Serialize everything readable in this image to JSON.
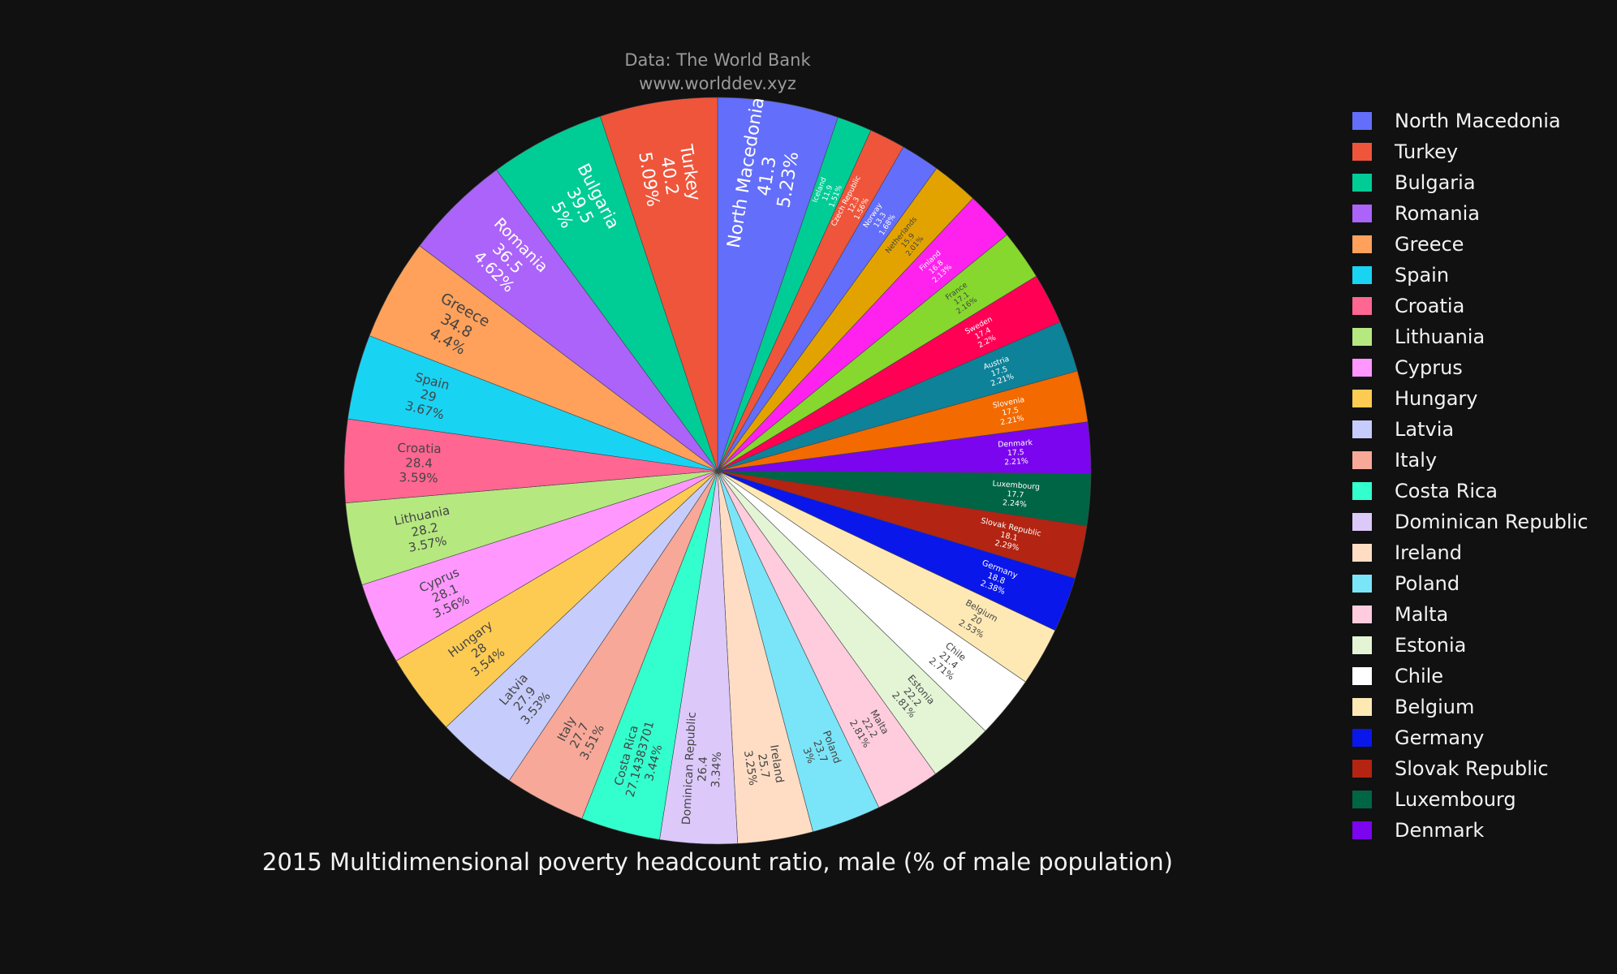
{
  "source_line1": "Data: The World Bank",
  "source_line2": "www.worlddev.xyz",
  "chart_data": {
    "type": "pie",
    "title": "2015 Multidimensional poverty headcount ratio, male (% of male population)",
    "direction": "clockwise",
    "legend_position": "right",
    "slices": [
      {
        "label": "North Macedonia",
        "value": 41.3,
        "percent": "5.23%",
        "color": "#636efa"
      },
      {
        "label": "Iceland",
        "value": 11.9,
        "percent": "1.51%",
        "color": "#00cc96"
      },
      {
        "label": "Czech Republic",
        "value": 12.3,
        "percent": "1.56%",
        "color": "#EF553B"
      },
      {
        "label": "Norway",
        "value": 13.3,
        "percent": "1.68%",
        "color": "#636efa"
      },
      {
        "label": "Netherlands",
        "value": 15.9,
        "percent": "2.01%",
        "color": "#E2A300"
      },
      {
        "label": "Finland",
        "value": 16.8,
        "percent": "2.13%",
        "color": "#FF22EE"
      },
      {
        "label": "France",
        "value": 17.1,
        "percent": "2.16%",
        "color": "#86D72E"
      },
      {
        "label": "Sweden",
        "value": 17.4,
        "percent": "2.2%",
        "color": "#FF0055"
      },
      {
        "label": "Austria",
        "value": 17.5,
        "percent": "2.21%",
        "color": "#0D8299"
      },
      {
        "label": "Slovenia",
        "value": 17.5,
        "percent": "2.21%",
        "color": "#F26A00"
      },
      {
        "label": "Denmark",
        "value": 17.5,
        "percent": "2.21%",
        "color": "#7A05EE"
      },
      {
        "label": "Luxembourg",
        "value": 17.7,
        "percent": "2.24%",
        "color": "#006545"
      },
      {
        "label": "Slovak Republic",
        "value": 18.1,
        "percent": "2.29%",
        "color": "#B32412"
      },
      {
        "label": "Germany",
        "value": 18.8,
        "percent": "2.38%",
        "color": "#0A17EB"
      },
      {
        "label": "Belgium",
        "value": 20,
        "percent": "2.53%",
        "color": "#FEE9B5"
      },
      {
        "label": "Chile",
        "value": 21.4,
        "percent": "2.71%",
        "color": "#FFFFFF"
      },
      {
        "label": "Estonia",
        "value": 22.2,
        "percent": "2.81%",
        "color": "#E4F5D6"
      },
      {
        "label": "Malta",
        "value": 22.2,
        "percent": "2.81%",
        "color": "#FFCCDD"
      },
      {
        "label": "Poland",
        "value": 23.7,
        "percent": "3%",
        "color": "#7AE5F8"
      },
      {
        "label": "Ireland",
        "value": 25.7,
        "percent": "3.25%",
        "color": "#FFDDC4"
      },
      {
        "label": "Dominican Republic",
        "value": 26.4,
        "percent": "3.34%",
        "color": "#DCC9FA"
      },
      {
        "label": "Costa Rica",
        "value": "27.14383701",
        "percent": "3.44%",
        "color": "#33FFCE"
      },
      {
        "label": "Italy",
        "value": 27.7,
        "percent": "3.51%",
        "color": "#F7A898"
      },
      {
        "label": "Latvia",
        "value": 27.9,
        "percent": "3.53%",
        "color": "#C6CCFB"
      },
      {
        "label": "Hungary",
        "value": 28,
        "percent": "3.54%",
        "color": "#FECB52"
      },
      {
        "label": "Cyprus",
        "value": 28.1,
        "percent": "3.56%",
        "color": "#FF97FF"
      },
      {
        "label": "Lithuania",
        "value": 28.2,
        "percent": "3.57%",
        "color": "#B6E880"
      },
      {
        "label": "Croatia",
        "value": 28.4,
        "percent": "3.59%",
        "color": "#FF6692"
      },
      {
        "label": "Spain",
        "value": 29,
        "percent": "3.67%",
        "color": "#19D3F3"
      },
      {
        "label": "Greece",
        "value": 34.8,
        "percent": "4.4%",
        "color": "#FFA15A"
      },
      {
        "label": "Romania",
        "value": 36.5,
        "percent": "4.62%",
        "color": "#AB63FA"
      },
      {
        "label": "Bulgaria",
        "value": 39.5,
        "percent": "5%",
        "color": "#00cc96"
      },
      {
        "label": "Turkey",
        "value": 40.2,
        "percent": "5.09%",
        "color": "#EF553B"
      }
    ],
    "legend": [
      {
        "label": "North Macedonia",
        "color": "#636efa"
      },
      {
        "label": "Turkey",
        "color": "#EF553B"
      },
      {
        "label": "Bulgaria",
        "color": "#00cc96"
      },
      {
        "label": "Romania",
        "color": "#AB63FA"
      },
      {
        "label": "Greece",
        "color": "#FFA15A"
      },
      {
        "label": "Spain",
        "color": "#19D3F3"
      },
      {
        "label": "Croatia",
        "color": "#FF6692"
      },
      {
        "label": "Lithuania",
        "color": "#B6E880"
      },
      {
        "label": "Cyprus",
        "color": "#FF97FF"
      },
      {
        "label": "Hungary",
        "color": "#FECB52"
      },
      {
        "label": "Latvia",
        "color": "#C6CCFB"
      },
      {
        "label": "Italy",
        "color": "#F7A898"
      },
      {
        "label": "Costa Rica",
        "color": "#33FFCE"
      },
      {
        "label": "Dominican Republic",
        "color": "#DCC9FA"
      },
      {
        "label": "Ireland",
        "color": "#FFDDC4"
      },
      {
        "label": "Poland",
        "color": "#7AE5F8"
      },
      {
        "label": "Malta",
        "color": "#FFCCDD"
      },
      {
        "label": "Estonia",
        "color": "#E4F5D6"
      },
      {
        "label": "Chile",
        "color": "#FFFFFF"
      },
      {
        "label": "Belgium",
        "color": "#FEE9B5"
      },
      {
        "label": "Germany",
        "color": "#0A17EB"
      },
      {
        "label": "Slovak Republic",
        "color": "#B32412"
      },
      {
        "label": "Luxembourg",
        "color": "#006545"
      },
      {
        "label": "Denmark",
        "color": "#7A05EE"
      }
    ]
  }
}
